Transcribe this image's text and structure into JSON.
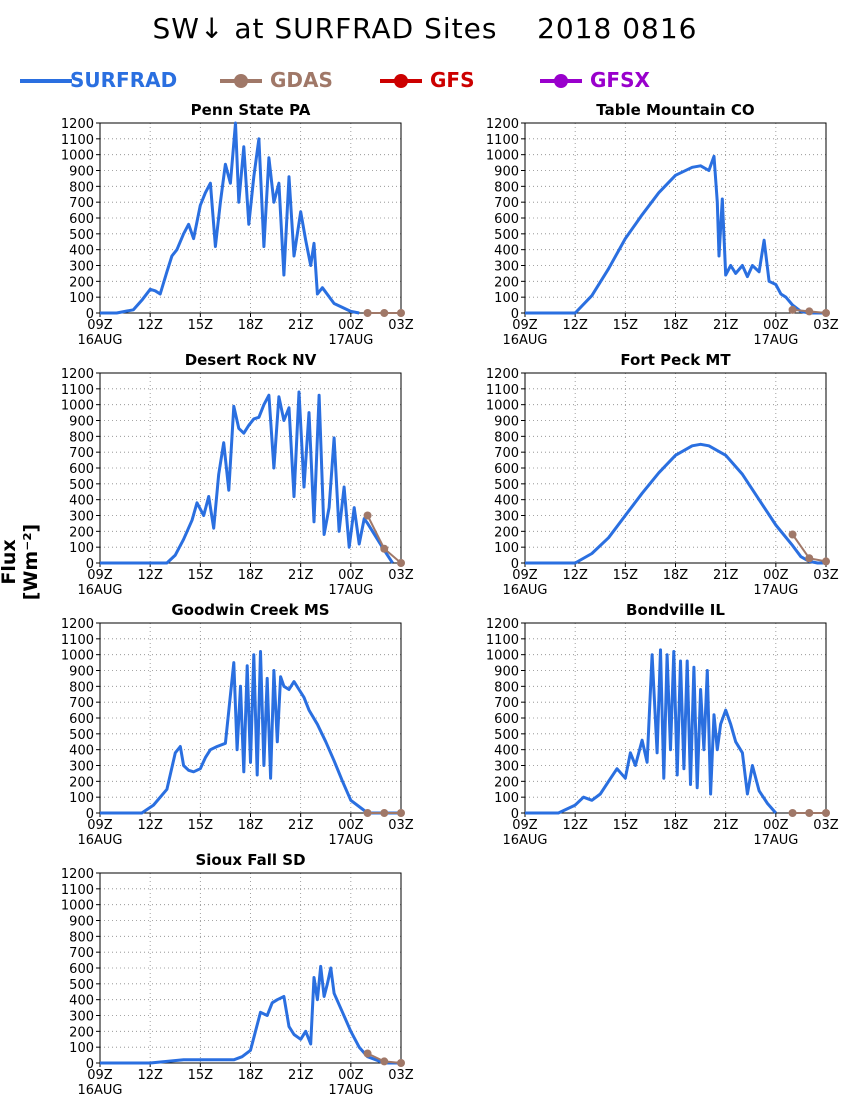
{
  "title": "SW↓ at SURFRAD Sites    2018 0816",
  "legend": [
    {
      "label": "SURFRAD",
      "color": "#2a6fe0",
      "marker": false
    },
    {
      "label": "GDAS",
      "color": "#a07868",
      "marker": true
    },
    {
      "label": "GFS",
      "color": "#cc0000",
      "marker": true
    },
    {
      "label": "GFSX",
      "color": "#9900cc",
      "marker": true
    }
  ],
  "ylabel": "Flux [Wm⁻²]",
  "chart_data": [
    {
      "type": "line",
      "title": "Penn State PA",
      "xlim": [
        9,
        27
      ],
      "ylim": [
        0,
        1200
      ],
      "xticks": [
        9,
        12,
        15,
        18,
        21,
        24,
        27
      ],
      "xticklabels": [
        "09Z",
        "12Z",
        "15Z",
        "18Z",
        "21Z",
        "00Z",
        "03Z"
      ],
      "xticklabels2": [
        "16AUG",
        "",
        "",
        "",
        "",
        "17AUG",
        ""
      ],
      "yticks": [
        0,
        100,
        200,
        300,
        400,
        500,
        600,
        700,
        800,
        900,
        1000,
        1100,
        1200
      ],
      "series": [
        {
          "name": "SURFRAD",
          "color": "#2a6fe0",
          "x": [
            9,
            10,
            11,
            11.5,
            12,
            12.3,
            12.6,
            13,
            13.3,
            13.6,
            14,
            14.3,
            14.6,
            15,
            15.3,
            15.6,
            15.9,
            16.2,
            16.5,
            16.8,
            17.1,
            17.3,
            17.6,
            17.9,
            18.2,
            18.5,
            18.8,
            19.1,
            19.4,
            19.7,
            20,
            20.3,
            20.6,
            21,
            21.3,
            21.6,
            21.8,
            22,
            22.3,
            23,
            24,
            24.5
          ],
          "y": [
            0,
            0,
            20,
            80,
            150,
            140,
            120,
            260,
            360,
            400,
            500,
            560,
            470,
            680,
            760,
            820,
            420,
            700,
            940,
            820,
            1200,
            700,
            1050,
            560,
            860,
            1100,
            420,
            980,
            700,
            820,
            240,
            860,
            360,
            640,
            460,
            300,
            440,
            120,
            160,
            60,
            10,
            0
          ]
        },
        {
          "name": "GDAS",
          "color": "#a07868",
          "x": [
            25,
            26,
            27
          ],
          "y": [
            0,
            0,
            0
          ]
        }
      ]
    },
    {
      "type": "line",
      "title": "Table Mountain CO",
      "xlim": [
        9,
        27
      ],
      "ylim": [
        0,
        1200
      ],
      "xticks": [
        9,
        12,
        15,
        18,
        21,
        24,
        27
      ],
      "xticklabels": [
        "09Z",
        "12Z",
        "15Z",
        "18Z",
        "21Z",
        "00Z",
        "03Z"
      ],
      "xticklabels2": [
        "16AUG",
        "",
        "",
        "",
        "",
        "17AUG",
        ""
      ],
      "yticks": [
        0,
        100,
        200,
        300,
        400,
        500,
        600,
        700,
        800,
        900,
        1000,
        1100,
        1200
      ],
      "series": [
        {
          "name": "SURFRAD",
          "color": "#2a6fe0",
          "x": [
            9,
            12,
            13,
            14,
            15,
            16,
            17,
            18,
            19,
            19.5,
            20,
            20.3,
            20.5,
            20.6,
            20.8,
            21,
            21.3,
            21.6,
            22,
            22.3,
            22.6,
            23,
            23.3,
            23.6,
            24,
            24.3,
            24.6,
            25,
            25.5,
            26,
            26.5,
            27
          ],
          "y": [
            0,
            0,
            110,
            280,
            470,
            620,
            760,
            870,
            920,
            930,
            900,
            990,
            700,
            360,
            720,
            240,
            300,
            250,
            300,
            230,
            300,
            260,
            460,
            200,
            180,
            120,
            100,
            50,
            10,
            0,
            0,
            0
          ]
        },
        {
          "name": "GDAS",
          "color": "#a07868",
          "x": [
            25,
            26,
            27
          ],
          "y": [
            20,
            10,
            0
          ]
        }
      ]
    },
    {
      "type": "line",
      "title": "Desert Rock NV",
      "xlim": [
        9,
        27
      ],
      "ylim": [
        0,
        1200
      ],
      "xticks": [
        9,
        12,
        15,
        18,
        21,
        24,
        27
      ],
      "xticklabels": [
        "09Z",
        "12Z",
        "15Z",
        "18Z",
        "21Z",
        "00Z",
        "03Z"
      ],
      "xticklabels2": [
        "16AUG",
        "",
        "",
        "",
        "",
        "17AUG",
        ""
      ],
      "yticks": [
        0,
        100,
        200,
        300,
        400,
        500,
        600,
        700,
        800,
        900,
        1000,
        1100,
        1200
      ],
      "series": [
        {
          "name": "SURFRAD",
          "color": "#2a6fe0",
          "x": [
            9,
            13,
            13.5,
            14,
            14.5,
            14.8,
            15.2,
            15.5,
            15.8,
            16.1,
            16.4,
            16.7,
            17,
            17.3,
            17.6,
            17.9,
            18.2,
            18.5,
            18.8,
            19.1,
            19.4,
            19.7,
            20,
            20.3,
            20.6,
            20.9,
            21.2,
            21.5,
            21.8,
            22.1,
            22.4,
            22.7,
            23,
            23.3,
            23.6,
            23.9,
            24.2,
            24.5,
            24.8,
            25,
            26,
            26.5
          ],
          "y": [
            0,
            0,
            50,
            150,
            270,
            380,
            300,
            420,
            220,
            560,
            760,
            460,
            990,
            850,
            820,
            870,
            910,
            920,
            1000,
            1060,
            600,
            1050,
            900,
            980,
            420,
            1080,
            480,
            950,
            260,
            1060,
            180,
            350,
            790,
            200,
            480,
            100,
            350,
            120,
            280,
            250,
            80,
            0
          ]
        },
        {
          "name": "GDAS",
          "color": "#a07868",
          "x": [
            25,
            26,
            27
          ],
          "y": [
            300,
            90,
            0
          ]
        }
      ]
    },
    {
      "type": "line",
      "title": "Fort Peck MT",
      "xlim": [
        9,
        27
      ],
      "ylim": [
        0,
        1200
      ],
      "xticks": [
        9,
        12,
        15,
        18,
        21,
        24,
        27
      ],
      "xticklabels": [
        "09Z",
        "12Z",
        "15Z",
        "18Z",
        "21Z",
        "00Z",
        "03Z"
      ],
      "xticklabels2": [
        "16AUG",
        "",
        "",
        "",
        "",
        "17AUG",
        ""
      ],
      "yticks": [
        0,
        100,
        200,
        300,
        400,
        500,
        600,
        700,
        800,
        900,
        1000,
        1100,
        1200
      ],
      "series": [
        {
          "name": "SURFRAD",
          "color": "#2a6fe0",
          "x": [
            9,
            12,
            13,
            14,
            15,
            16,
            17,
            18,
            19,
            19.5,
            20,
            21,
            22,
            23,
            24,
            25,
            25.5,
            26,
            26.5,
            27
          ],
          "y": [
            0,
            0,
            60,
            160,
            300,
            440,
            570,
            680,
            740,
            750,
            740,
            680,
            560,
            400,
            240,
            110,
            40,
            10,
            0,
            0
          ]
        },
        {
          "name": "GDAS",
          "color": "#a07868",
          "x": [
            25,
            26,
            27
          ],
          "y": [
            180,
            30,
            10
          ]
        }
      ]
    },
    {
      "type": "line",
      "title": "Goodwin Creek MS",
      "xlim": [
        9,
        27
      ],
      "ylim": [
        0,
        1200
      ],
      "xticks": [
        9,
        12,
        15,
        18,
        21,
        24,
        27
      ],
      "xticklabels": [
        "09Z",
        "12Z",
        "15Z",
        "18Z",
        "21Z",
        "00Z",
        "03Z"
      ],
      "xticklabels2": [
        "16AUG",
        "",
        "",
        "",
        "",
        "17AUG",
        ""
      ],
      "yticks": [
        0,
        100,
        200,
        300,
        400,
        500,
        600,
        700,
        800,
        900,
        1000,
        1100,
        1200
      ],
      "series": [
        {
          "name": "SURFRAD",
          "color": "#2a6fe0",
          "x": [
            9,
            11.5,
            12.2,
            13,
            13.5,
            13.8,
            14,
            14.3,
            14.6,
            15,
            15.3,
            15.6,
            16,
            16.5,
            17,
            17.2,
            17.4,
            17.6,
            17.8,
            18,
            18.2,
            18.4,
            18.6,
            18.8,
            19,
            19.2,
            19.4,
            19.6,
            19.8,
            20,
            20.3,
            20.6,
            20.9,
            21.2,
            21.5,
            22,
            22.5,
            23,
            23.5,
            24,
            25,
            26,
            27
          ],
          "y": [
            0,
            0,
            50,
            150,
            380,
            420,
            300,
            270,
            260,
            280,
            350,
            400,
            420,
            440,
            950,
            400,
            800,
            260,
            930,
            320,
            1000,
            240,
            1020,
            300,
            850,
            220,
            900,
            450,
            860,
            800,
            780,
            830,
            780,
            730,
            650,
            560,
            450,
            330,
            200,
            80,
            0,
            0,
            0
          ]
        },
        {
          "name": "GDAS",
          "color": "#a07868",
          "x": [
            25,
            26,
            27
          ],
          "y": [
            0,
            0,
            0
          ]
        }
      ]
    },
    {
      "type": "line",
      "title": "Bondville IL",
      "xlim": [
        9,
        27
      ],
      "ylim": [
        0,
        1200
      ],
      "xticks": [
        9,
        12,
        15,
        18,
        21,
        24,
        27
      ],
      "xticklabels": [
        "09Z",
        "12Z",
        "15Z",
        "18Z",
        "21Z",
        "00Z",
        "03Z"
      ],
      "xticklabels2": [
        "16AUG",
        "",
        "",
        "",
        "",
        "17AUG",
        ""
      ],
      "yticks": [
        0,
        100,
        200,
        300,
        400,
        500,
        600,
        700,
        800,
        900,
        1000,
        1100,
        1200
      ],
      "series": [
        {
          "name": "SURFRAD",
          "color": "#2a6fe0",
          "x": [
            9,
            11,
            12,
            12.5,
            13,
            13.5,
            14,
            14.5,
            15,
            15.3,
            15.6,
            16,
            16.3,
            16.6,
            16.9,
            17.1,
            17.3,
            17.5,
            17.7,
            17.9,
            18.1,
            18.3,
            18.5,
            18.7,
            18.9,
            19.1,
            19.3,
            19.5,
            19.7,
            19.9,
            20.1,
            20.3,
            20.5,
            20.7,
            21,
            21.3,
            21.6,
            22,
            22.3,
            22.6,
            23,
            23.5,
            24
          ],
          "y": [
            0,
            0,
            50,
            100,
            80,
            120,
            200,
            280,
            220,
            380,
            300,
            460,
            320,
            1000,
            380,
            1030,
            220,
            1000,
            400,
            1020,
            240,
            960,
            280,
            960,
            180,
            920,
            160,
            780,
            400,
            900,
            120,
            620,
            400,
            560,
            650,
            560,
            450,
            380,
            120,
            300,
            140,
            60,
            0
          ]
        },
        {
          "name": "GDAS",
          "color": "#a07868",
          "x": [
            25,
            26,
            27
          ],
          "y": [
            0,
            0,
            0
          ]
        }
      ]
    },
    {
      "type": "line",
      "title": "Sioux Fall SD",
      "xlim": [
        9,
        27
      ],
      "ylim": [
        0,
        1200
      ],
      "xticks": [
        9,
        12,
        15,
        18,
        21,
        24,
        27
      ],
      "xticklabels": [
        "09Z",
        "12Z",
        "15Z",
        "18Z",
        "21Z",
        "00Z",
        "03Z"
      ],
      "xticklabels2": [
        "16AUG",
        "",
        "",
        "",
        "",
        "17AUG",
        ""
      ],
      "yticks": [
        0,
        100,
        200,
        300,
        400,
        500,
        600,
        700,
        800,
        900,
        1000,
        1100,
        1200
      ],
      "series": [
        {
          "name": "SURFRAD",
          "color": "#2a6fe0",
          "x": [
            9,
            12,
            13,
            14,
            15,
            16,
            17,
            17.5,
            18,
            18.3,
            18.6,
            19,
            19.3,
            19.6,
            20,
            20.3,
            20.6,
            21,
            21.3,
            21.6,
            21.8,
            22,
            22.2,
            22.4,
            22.6,
            22.8,
            23,
            23.5,
            24,
            24.5,
            25,
            26,
            27
          ],
          "y": [
            0,
            0,
            10,
            20,
            20,
            20,
            20,
            40,
            80,
            200,
            320,
            300,
            380,
            400,
            420,
            230,
            180,
            150,
            200,
            120,
            540,
            400,
            610,
            420,
            500,
            600,
            440,
            320,
            200,
            100,
            40,
            0,
            0
          ]
        },
        {
          "name": "GDAS",
          "color": "#a07868",
          "x": [
            25,
            26,
            27
          ],
          "y": [
            60,
            10,
            0
          ]
        }
      ]
    }
  ]
}
